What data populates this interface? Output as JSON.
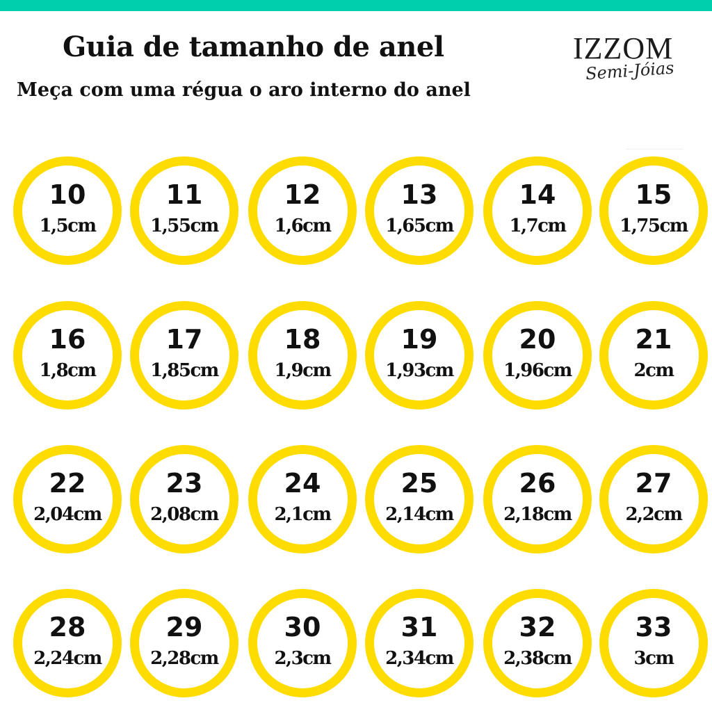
{
  "header": {
    "title": "Guia de tamanho de anel",
    "subtitle": "Meça com uma régua o aro interno do anel"
  },
  "logo": {
    "brand": "IZZOM",
    "tagline": "Semi-Jóias"
  },
  "colors": {
    "top_bar": "#00cfae",
    "ring": "#ffdc00",
    "background": "#ffffff"
  },
  "sizes": [
    {
      "number": "10",
      "diameter": "1,5cm"
    },
    {
      "number": "11",
      "diameter": "1,55cm"
    },
    {
      "number": "12",
      "diameter": "1,6cm"
    },
    {
      "number": "13",
      "diameter": "1,65cm"
    },
    {
      "number": "14",
      "diameter": "1,7cm"
    },
    {
      "number": "15",
      "diameter": "1,75cm"
    },
    {
      "number": "16",
      "diameter": "1,8cm"
    },
    {
      "number": "17",
      "diameter": "1,85cm"
    },
    {
      "number": "18",
      "diameter": "1,9cm"
    },
    {
      "number": "19",
      "diameter": "1,93cm"
    },
    {
      "number": "20",
      "diameter": "1,96cm"
    },
    {
      "number": "21",
      "diameter": "2cm"
    },
    {
      "number": "22",
      "diameter": "2,04cm"
    },
    {
      "number": "23",
      "diameter": "2,08cm"
    },
    {
      "number": "24",
      "diameter": "2,1cm"
    },
    {
      "number": "25",
      "diameter": "2,14cm"
    },
    {
      "number": "26",
      "diameter": "2,18cm"
    },
    {
      "number": "27",
      "diameter": "2,2cm"
    },
    {
      "number": "28",
      "diameter": "2,24cm"
    },
    {
      "number": "29",
      "diameter": "2,28cm"
    },
    {
      "number": "30",
      "diameter": "2,3cm"
    },
    {
      "number": "31",
      "diameter": "2,34cm"
    },
    {
      "number": "32",
      "diameter": "2,38cm"
    },
    {
      "number": "33",
      "diameter": "3cm"
    }
  ]
}
